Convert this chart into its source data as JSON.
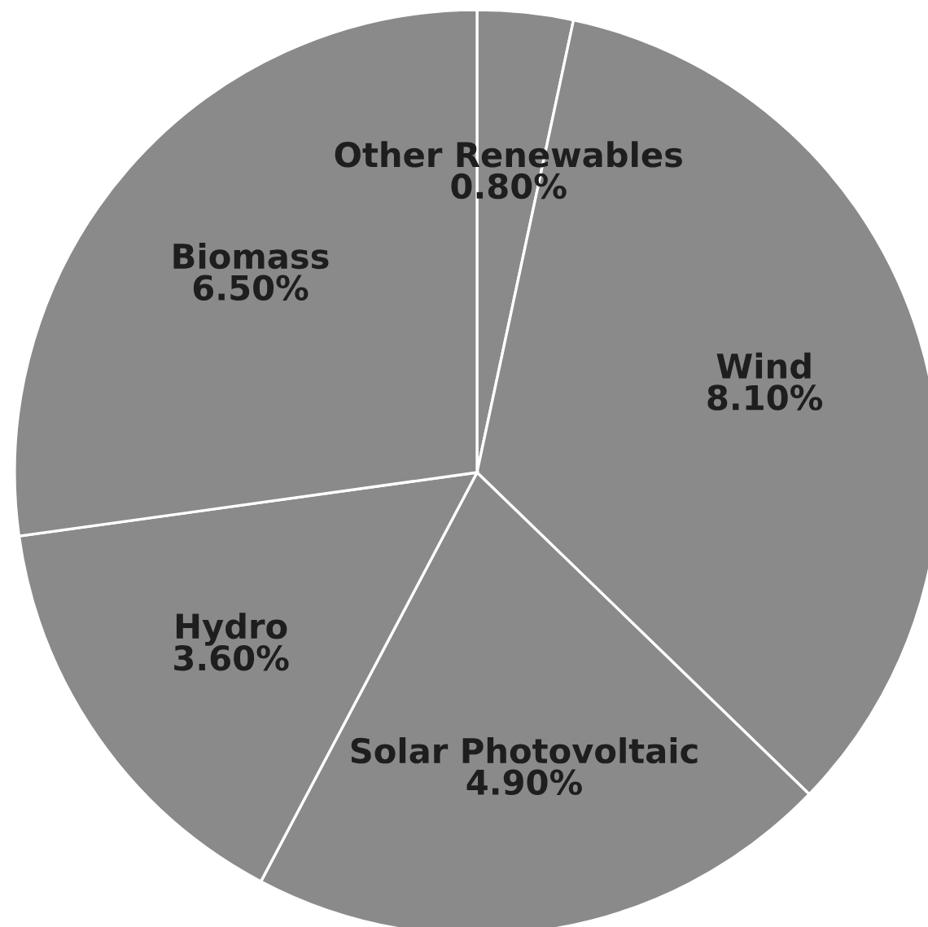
{
  "chart_data": {
    "type": "pie",
    "categories": [
      "Other Renewables",
      "Wind",
      "Solar Photovoltaic",
      "Hydro",
      "Biomass"
    ],
    "values": [
      0.8,
      8.1,
      4.9,
      3.6,
      6.5
    ],
    "value_labels": [
      "0.80%",
      "8.10%",
      "4.90%",
      "3.60%",
      "6.50%"
    ],
    "colors": [
      "#8a8a8a",
      "#8a8a8a",
      "#8a8a8a",
      "#8a8a8a",
      "#8a8a8a"
    ],
    "legend": false
  }
}
